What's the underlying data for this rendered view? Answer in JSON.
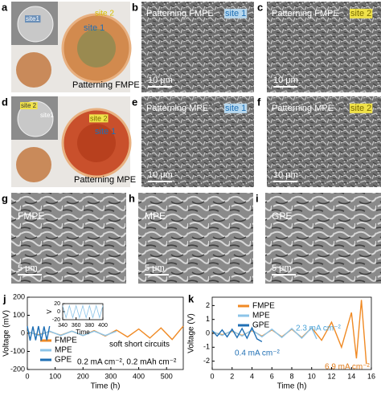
{
  "panels": [
    {
      "letter": "a",
      "texts": [
        "site1",
        "site 2",
        "site 1",
        "Patterning FMPE"
      ]
    },
    {
      "letter": "b",
      "texts": [
        "Patterning FMPE",
        "site 1",
        "10 μm"
      ]
    },
    {
      "letter": "c",
      "texts": [
        "Patterning FMPE",
        "site 2",
        "10 μm"
      ]
    },
    {
      "letter": "d",
      "texts": [
        "site 2",
        "site1",
        "site 2",
        "site 1",
        "Patterning MPE"
      ]
    },
    {
      "letter": "e",
      "texts": [
        "Patterning MPE",
        "site 1",
        "10 μm"
      ]
    },
    {
      "letter": "f",
      "texts": [
        "Patterning MPE",
        "site 2",
        "10 μm"
      ]
    },
    {
      "letter": "g",
      "texts": [
        "FMPE",
        "5 μm"
      ]
    },
    {
      "letter": "h",
      "texts": [
        "MPE",
        "5 μm"
      ]
    },
    {
      "letter": "i",
      "texts": [
        "GPE",
        "5 μm"
      ]
    }
  ],
  "chart_data": [
    {
      "type": "line",
      "panel_label": "j",
      "x_label": "Time (h)",
      "y_label": "Voltage (mV)",
      "xlim": [
        0,
        560
      ],
      "xticks": [
        0,
        100,
        200,
        300,
        400,
        500
      ],
      "ylim": [
        -200,
        200
      ],
      "yticks": [
        -200,
        -100,
        0,
        100,
        200
      ],
      "legend": true,
      "series": [
        {
          "name": "FMPE",
          "color": "#f08a24",
          "x": [
            0,
            40,
            80,
            120,
            160,
            200,
            240,
            280,
            320,
            360,
            400,
            440,
            480,
            520,
            560
          ],
          "values": [
            8,
            -8,
            10,
            -10,
            12,
            -12,
            15,
            -15,
            18,
            -20,
            24,
            -26,
            30,
            -34,
            40
          ]
        },
        {
          "name": "MPE",
          "color": "#8cc4e8",
          "x": [
            0,
            40,
            80,
            120,
            160,
            200,
            240,
            280,
            320
          ],
          "values": [
            12,
            -12,
            12,
            -12,
            12,
            -12,
            12,
            -12,
            12
          ]
        },
        {
          "name": "GPE",
          "color": "#1f6fb4",
          "x": [
            0,
            10,
            20,
            30,
            40,
            50,
            60,
            70,
            80
          ],
          "values": [
            40,
            -40,
            38,
            -38,
            40,
            -40,
            38,
            -38,
            40
          ]
        }
      ],
      "annotations": [
        {
          "text": "soft short circuits",
          "color": "#000000"
        },
        {
          "text": "0.2 mA cm⁻², 0.2 mAh cm⁻²",
          "color": "#000000"
        }
      ]
    },
    {
      "type": "line",
      "x_label": "Time",
      "y_label": "V",
      "xlim": [
        340,
        400
      ],
      "xticks": [
        340,
        360,
        380,
        400
      ],
      "ylim": [
        -20,
        20
      ],
      "yticks": [
        -20,
        0,
        20
      ],
      "series": [
        {
          "color": "#8cc4e8",
          "x": [
            340,
            345,
            350,
            355,
            360,
            365,
            370,
            375,
            380,
            385,
            390,
            395,
            400
          ],
          "values": [
            15,
            -15,
            15,
            -15,
            15,
            -15,
            15,
            -15,
            15,
            -15,
            15,
            -15,
            15
          ]
        }
      ]
    },
    {
      "type": "line",
      "panel_label": "k",
      "x_label": "Time (h)",
      "y_label": "Voltage (V)",
      "xlim": [
        0,
        16
      ],
      "xticks": [
        0,
        2,
        4,
        6,
        8,
        10,
        12,
        14,
        16
      ],
      "ylim": [
        -2.6,
        2.6
      ],
      "yticks": [
        -2,
        -1,
        0,
        1,
        2
      ],
      "legend": true,
      "series": [
        {
          "name": "FMPE",
          "color": "#f08a24",
          "x": [
            0,
            1,
            2,
            3,
            4,
            5,
            6,
            7,
            8,
            9,
            10,
            11,
            12,
            13,
            14,
            14.5,
            15,
            15.5
          ],
          "values": [
            0.1,
            -0.1,
            0.15,
            -0.15,
            0.2,
            -0.2,
            0.25,
            -0.25,
            0.3,
            -0.3,
            0.4,
            -0.5,
            0.8,
            -1,
            1.5,
            -1.8,
            2.4,
            -2.2
          ]
        },
        {
          "name": "MPE",
          "color": "#8cc4e8",
          "x": [
            0,
            1,
            2,
            3,
            4,
            5,
            6,
            7,
            8,
            9,
            10,
            10.5
          ],
          "values": [
            0.15,
            -0.15,
            0.2,
            -0.2,
            0.25,
            -0.25,
            0.3,
            -0.3,
            0.35,
            -0.35,
            0.4,
            -0.4
          ]
        },
        {
          "name": "GPE",
          "color": "#1f6fb4",
          "x": [
            0,
            0.5,
            1,
            1.5,
            2,
            2.5,
            3,
            3.5,
            4,
            4.5,
            5
          ],
          "values": [
            0.2,
            -0.2,
            0.25,
            -0.25,
            0.3,
            -0.3,
            0.35,
            -0.35,
            0.4,
            -0.4,
            -0.6
          ]
        }
      ],
      "annotations": [
        {
          "text": "0.4 mA cm⁻²",
          "color": "#1f6fb4"
        },
        {
          "text": "2.3 mA cm⁻²",
          "color": "#4aa3d8"
        },
        {
          "text": "6.9 mA cm⁻²",
          "color": "#e07b1a"
        }
      ]
    }
  ]
}
